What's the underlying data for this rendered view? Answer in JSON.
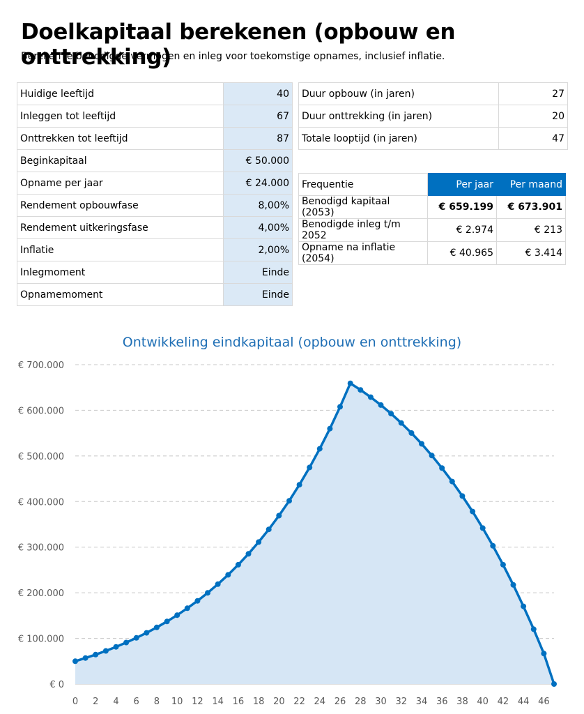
{
  "header": {
    "title": "Doelkapitaal berekenen (opbouw en onttrekking)",
    "subtitle": "Bereken je benodigde vermogen en inleg voor toekomstige opnames, inclusief inflatie."
  },
  "inputs": [
    {
      "label": "Huidige leeftijd",
      "value": "40"
    },
    {
      "label": "Inleggen tot leeftijd",
      "value": "67"
    },
    {
      "label": "Onttrekken tot leeftijd",
      "value": "87"
    },
    {
      "label": "Beginkapitaal",
      "value": "€ 50.000"
    },
    {
      "label": "Opname per jaar",
      "value": "€ 24.000"
    },
    {
      "label": "Rendement opbouwfase",
      "value": "8,00%"
    },
    {
      "label": "Rendement uitkeringsfase",
      "value": "4,00%"
    },
    {
      "label": "Inflatie",
      "value": "2,00%"
    },
    {
      "label": "Inlegmoment",
      "value": "Einde"
    },
    {
      "label": "Opnamemoment",
      "value": "Einde"
    }
  ],
  "durations": [
    {
      "label": "Duur opbouw (in jaren)",
      "value": "27"
    },
    {
      "label": "Duur onttrekking (in jaren)",
      "value": "20"
    },
    {
      "label": "Totale looptijd (in jaren)",
      "value": "47"
    }
  ],
  "results": {
    "header": {
      "label": "Frequentie",
      "col1": "Per jaar",
      "col2": "Per maand"
    },
    "rows": [
      {
        "label": "Benodigd kapitaal (2053)",
        "col1": "€ 659.199",
        "col2": "€ 673.901"
      },
      {
        "label": "Benodigde inleg t/m 2052",
        "col1": "€ 2.974",
        "col2": "€ 213"
      },
      {
        "label": "Opname na inflatie (2054)",
        "col1": "€ 40.965",
        "col2": "€ 3.414"
      }
    ]
  },
  "chart_data": {
    "type": "area",
    "title": "Ontwikkeling eindkapitaal (opbouw en onttrekking)",
    "ylim": [
      0,
      700000
    ],
    "yticks": [
      0,
      100000,
      200000,
      300000,
      400000,
      500000,
      600000,
      700000
    ],
    "ytick_labels": [
      "€ 0",
      "€ 100.000",
      "€ 200.000",
      "€ 300.000",
      "€ 400.000",
      "€ 500.000",
      "€ 600.000",
      "€ 700.000"
    ],
    "xlim": [
      0,
      47
    ],
    "xticks": [
      0,
      2,
      4,
      6,
      8,
      10,
      12,
      14,
      16,
      18,
      20,
      22,
      24,
      26,
      28,
      30,
      32,
      34,
      36,
      38,
      40,
      42,
      44,
      46
    ],
    "grid": true,
    "colors": {
      "line": "#0070c0",
      "fill": "#d6e6f5",
      "grid": "#c8c8c8"
    },
    "x": [
      0,
      1,
      2,
      3,
      4,
      5,
      6,
      7,
      8,
      9,
      10,
      11,
      12,
      13,
      14,
      15,
      16,
      17,
      18,
      19,
      20,
      21,
      22,
      23,
      24,
      25,
      26,
      27,
      28,
      29,
      30,
      31,
      32,
      33,
      34,
      35,
      36,
      37,
      38,
      39,
      40,
      41,
      42,
      43,
      44,
      45,
      46,
      47
    ],
    "values": [
      50000,
      56974,
      64506,
      72641,
      81426,
      90914,
      101161,
      112228,
      124180,
      137089,
      151030,
      166087,
      182348,
      199911,
      218878,
      239363,
      261487,
      285381,
      311186,
      339056,
      369156,
      401665,
      436775,
      474694,
      515646,
      559874,
      607641,
      659199,
      644639,
      628744,
      611439,
      592646,
      572283,
      550265,
      526502,
      500901,
      473367,
      443797,
      412087,
      378124,
      341791,
      302968,
      261526,
      217329,
      170235,
      120094,
      66749,
      0
    ]
  }
}
